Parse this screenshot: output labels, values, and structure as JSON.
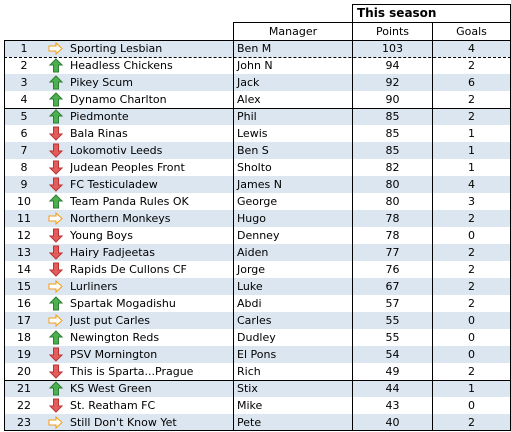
{
  "table": {
    "header": {
      "season": "This season",
      "manager": "Manager",
      "points": "Points",
      "goals": "Goals"
    },
    "rows": [
      {
        "rank": "1",
        "trend": "same",
        "team": "Sporting Lesbian",
        "manager": "Ben M",
        "points": "103",
        "goals": "4"
      },
      {
        "rank": "2",
        "trend": "up",
        "team": "Headless Chickens",
        "manager": "John N",
        "points": "94",
        "goals": "2"
      },
      {
        "rank": "3",
        "trend": "up",
        "team": "Pikey Scum",
        "manager": "Jack",
        "points": "92",
        "goals": "6"
      },
      {
        "rank": "4",
        "trend": "up",
        "team": "Dynamo Charlton",
        "manager": "Alex",
        "points": "90",
        "goals": "2"
      },
      {
        "rank": "5",
        "trend": "up",
        "team": "Piedmonte",
        "manager": "Phil",
        "points": "85",
        "goals": "2"
      },
      {
        "rank": "6",
        "trend": "down",
        "team": "Bala Rinas",
        "manager": "Lewis",
        "points": "85",
        "goals": "1"
      },
      {
        "rank": "7",
        "trend": "down",
        "team": "Lokomotiv Leeds",
        "manager": "Ben S",
        "points": "85",
        "goals": "1"
      },
      {
        "rank": "8",
        "trend": "down",
        "team": "Judean Peoples Front",
        "manager": "Sholto",
        "points": "82",
        "goals": "1"
      },
      {
        "rank": "9",
        "trend": "down",
        "team": "FC Testiculadew",
        "manager": "James N",
        "points": "80",
        "goals": "4"
      },
      {
        "rank": "10",
        "trend": "up",
        "team": "Team Panda Rules OK",
        "manager": "George",
        "points": "80",
        "goals": "3"
      },
      {
        "rank": "11",
        "trend": "same",
        "team": "Northern Monkeys",
        "manager": "Hugo",
        "points": "78",
        "goals": "2"
      },
      {
        "rank": "12",
        "trend": "down",
        "team": "Young Boys",
        "manager": "Denney",
        "points": "78",
        "goals": "0"
      },
      {
        "rank": "13",
        "trend": "down",
        "team": "Hairy Fadjeetas",
        "manager": "Aiden",
        "points": "77",
        "goals": "2"
      },
      {
        "rank": "14",
        "trend": "down",
        "team": "Rapids De Cullons CF",
        "manager": "Jorge",
        "points": "76",
        "goals": "2"
      },
      {
        "rank": "15",
        "trend": "same",
        "team": "Lurliners",
        "manager": "Luke",
        "points": "67",
        "goals": "2"
      },
      {
        "rank": "16",
        "trend": "up",
        "team": "Spartak Mogadishu",
        "manager": "Abdi",
        "points": "57",
        "goals": "2"
      },
      {
        "rank": "17",
        "trend": "same",
        "team": "Just put Carles",
        "manager": "Carles",
        "points": "55",
        "goals": "0"
      },
      {
        "rank": "18",
        "trend": "up",
        "team": "Newington Reds",
        "manager": "Dudley",
        "points": "55",
        "goals": "0"
      },
      {
        "rank": "19",
        "trend": "down",
        "team": "PSV Mornington",
        "manager": "El Pons",
        "points": "54",
        "goals": "0"
      },
      {
        "rank": "20",
        "trend": "down",
        "team": "This is Sparta...Prague",
        "manager": "Rich",
        "points": "49",
        "goals": "2"
      },
      {
        "rank": "21",
        "trend": "up",
        "team": "KS West Green",
        "manager": "Stix",
        "points": "44",
        "goals": "1"
      },
      {
        "rank": "22",
        "trend": "down",
        "team": "St. Reatham FC",
        "manager": "Mike",
        "points": "43",
        "goals": "0"
      },
      {
        "rank": "23",
        "trend": "same",
        "team": "Still Don't Know Yet",
        "manager": "Pete",
        "points": "40",
        "goals": "2"
      }
    ]
  }
}
